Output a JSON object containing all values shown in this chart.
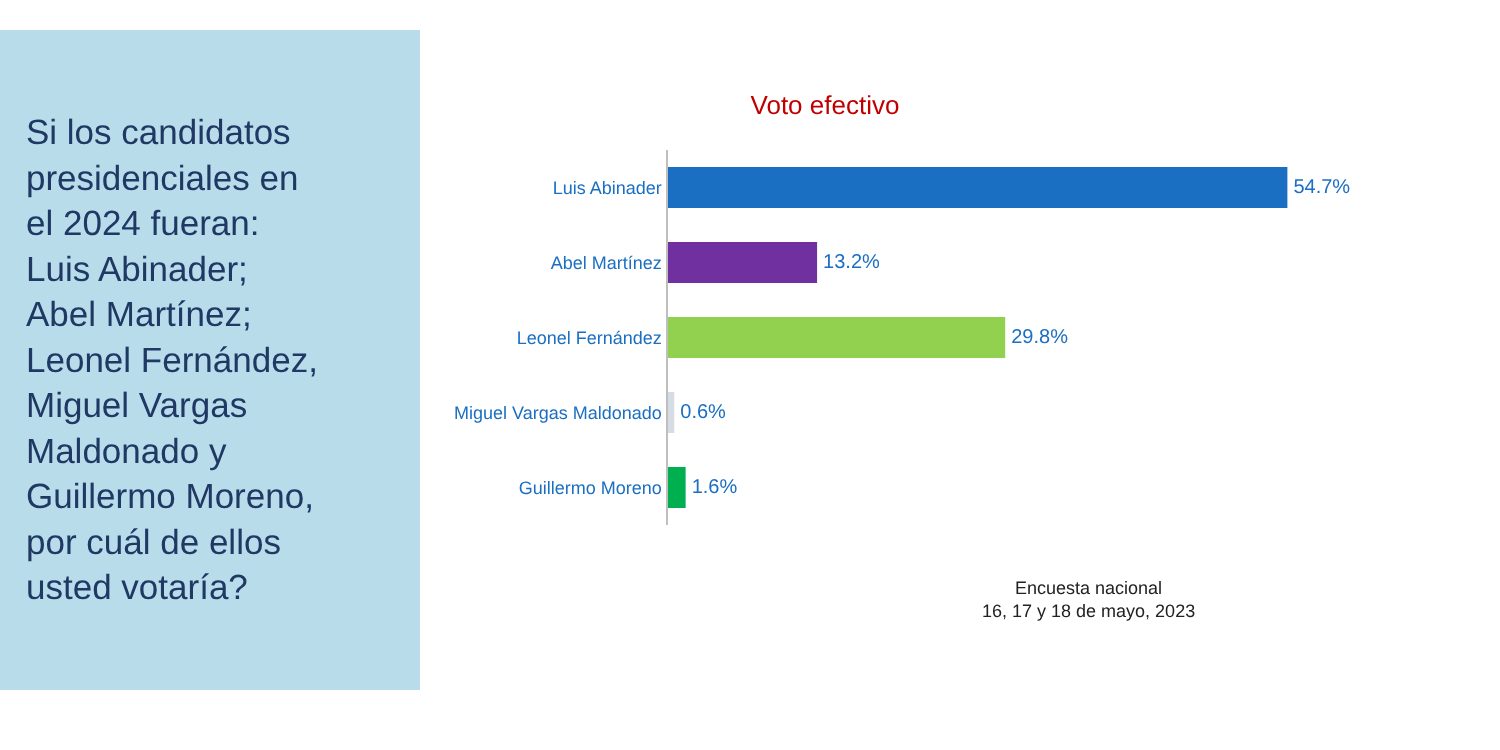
{
  "chart_data": {
    "type": "bar",
    "orientation": "horizontal",
    "title": "Voto efectivo",
    "categories": [
      "Luis Abinader",
      "Abel Martínez",
      "Leonel Fernández",
      "Miguel Vargas Maldonado",
      "Guillermo Moreno"
    ],
    "values": [
      54.7,
      13.2,
      29.8,
      0.6,
      1.6
    ],
    "colors": [
      "#1b6fc2",
      "#7030a0",
      "#92d050",
      "#d6dce4",
      "#00b050"
    ],
    "value_labels": [
      "54.7%",
      "13.2%",
      "29.8%",
      "0.6%",
      "1.6%"
    ],
    "annotations": [
      "Si los candidatos presidenciales en el 2024 fueran: Luis Abinader; Abel Martínez; Leonel Fernández, Miguel Vargas Maldonado y Guillermo Moreno, por cuál de ellos usted votaría?",
      "Encuesta nacional\n16, 17 y 18 de mayo, 2023"
    ]
  }
}
